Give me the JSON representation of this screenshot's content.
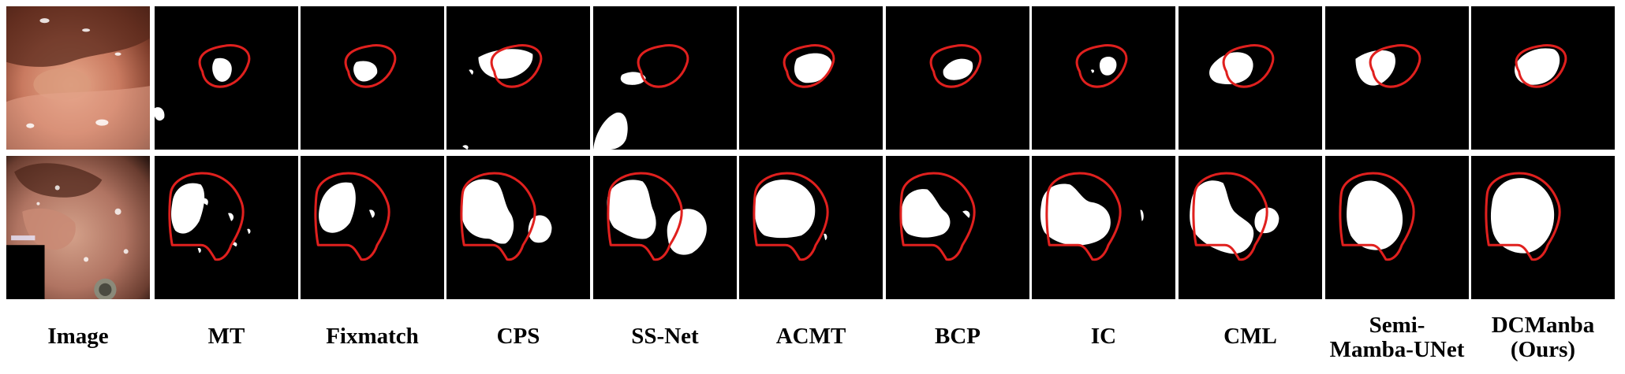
{
  "columns": [
    {
      "label": "Image"
    },
    {
      "label": "MT"
    },
    {
      "label": "Fixmatch"
    },
    {
      "label": "CPS"
    },
    {
      "label": "SS-Net"
    },
    {
      "label": "ACMT"
    },
    {
      "label": "BCP"
    },
    {
      "label": "IC"
    },
    {
      "label": "CML"
    },
    {
      "label": "Semi-\nMamba-UNet"
    },
    {
      "label": "DCManba\n(Ours)"
    }
  ],
  "rows": [
    "row-1",
    "row-2"
  ],
  "colors": {
    "contour": "#e0201e",
    "mask": "#ffffff",
    "background": "#000000"
  }
}
